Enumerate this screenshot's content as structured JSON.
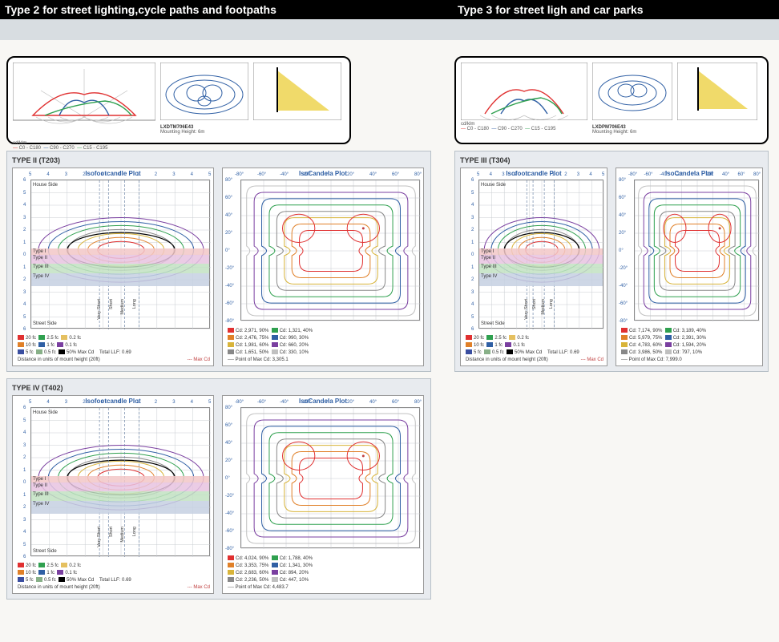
{
  "header": {
    "type2": "Type 2 for street lighting,cycle paths and footpaths",
    "type3": "Type 3 for street ligh and car parks"
  },
  "polar": {
    "legend_c0": "C0 - C180",
    "legend_c90": "C90 - C270",
    "legend_c15": "C15 - C195",
    "unit": "cd/klm",
    "model_t2": "LXDTM706E43",
    "model_t3": "LXDPM706E43",
    "mh": "Mounting Height: 6m"
  },
  "colors": {
    "red": "#e03030",
    "blue": "#2f5fa4",
    "green": "#2fa04f",
    "purple": "#7a3fa0",
    "orange": "#e08028",
    "black": "#000",
    "gold": "#d8b43a",
    "band_t1": "#f2c7c7",
    "band_t2": "#e7c3e0",
    "band_t3": "#c2e2c2",
    "band_t4": "#c6d0e2",
    "grid": "#c8ccd2",
    "dash": "#6f87a8"
  },
  "cards": {
    "t2": {
      "code": "TYPE II (T203)",
      "cd": [
        {
          "c": "#e03030",
          "t": "Cd: 2,971, 90%"
        },
        {
          "c": "#2fa04f",
          "t": "Cd: 1,321, 40%"
        },
        {
          "c": "#e08028",
          "t": "Cd: 2,476, 75%"
        },
        {
          "c": "#2f5fa4",
          "t": "Cd: 990, 30%"
        },
        {
          "c": "#d8b43a",
          "t": "Cd: 1,981, 60%"
        },
        {
          "c": "#7a3fa0",
          "t": "Cd: 660, 20%"
        },
        {
          "c": "#888888",
          "t": "Cd: 1,651, 50%"
        },
        {
          "c": "#c0c0c0",
          "t": "Cd: 330, 10%"
        }
      ],
      "max": "Point of Max Cd: 3,305.1"
    },
    "t3": {
      "code": "TYPE III (T304)",
      "cd": [
        {
          "c": "#e03030",
          "t": "Cd: 7,174, 90%"
        },
        {
          "c": "#2fa04f",
          "t": "Cd: 3,189, 40%"
        },
        {
          "c": "#e08028",
          "t": "Cd: 5,979, 75%"
        },
        {
          "c": "#2f5fa4",
          "t": "Cd: 2,391, 30%"
        },
        {
          "c": "#d8b43a",
          "t": "Cd: 4,783, 60%"
        },
        {
          "c": "#7a3fa0",
          "t": "Cd: 1,594, 20%"
        },
        {
          "c": "#888888",
          "t": "Cd: 3,986, 50%"
        },
        {
          "c": "#c0c0c0",
          "t": "Cd: 797, 10%"
        }
      ],
      "max": "Point of Max Cd: 7,999.0"
    },
    "t4": {
      "code": "TYPE IV (T402)",
      "cd": [
        {
          "c": "#e03030",
          "t": "Cd: 4,024, 90%"
        },
        {
          "c": "#2fa04f",
          "t": "Cd: 1,788, 40%"
        },
        {
          "c": "#e08028",
          "t": "Cd: 3,353, 75%"
        },
        {
          "c": "#2f5fa4",
          "t": "Cd: 1,341, 30%"
        },
        {
          "c": "#d8b43a",
          "t": "Cd: 2,683, 60%"
        },
        {
          "c": "#7a3fa0",
          "t": "Cd: 894, 20%"
        },
        {
          "c": "#888888",
          "t": "Cd: 2,236, 50%"
        },
        {
          "c": "#c0c0c0",
          "t": "Cd: 447, 10%"
        }
      ],
      "max": "Point of Max Cd: 4,483.7"
    }
  },
  "fc_legend": [
    {
      "c": "#e03030",
      "t": "20 fc"
    },
    {
      "c": "#2fa04f",
      "t": "2.5 fc"
    },
    {
      "c": "#e5c060",
      "t": "0.2 fc"
    },
    {
      "c": "#e08028",
      "t": "10 fc"
    },
    {
      "c": "#2f5fa4",
      "t": "1 fc"
    },
    {
      "c": "#7a3fa0",
      "t": "0.1 fc"
    },
    {
      "c": "#3a4ea0",
      "t": "5 fc"
    },
    {
      "c": "#88b088",
      "t": "0.5 fc"
    },
    {
      "c": "#000",
      "t": "50% Max Cd"
    }
  ],
  "fc_meta": {
    "llf": "Total LLF: 0.69",
    "units": "Distance in units of mount height (20ft)",
    "maxcd": "--- Max Cd"
  },
  "iso": {
    "house": "House Side",
    "street": "Street Side",
    "types": [
      "Type I",
      "Type II",
      "Type III",
      "Type IV"
    ],
    "throw": [
      "Very Short",
      "Short",
      "Medium",
      "Long"
    ],
    "xticks": [
      "5",
      "4",
      "3",
      "2",
      "1",
      "0",
      "1",
      "2",
      "3",
      "4",
      "5"
    ],
    "yticks": [
      "6",
      "5",
      "4",
      "3",
      "2",
      "1",
      "0",
      "1",
      "2",
      "3",
      "4",
      "5",
      "6"
    ],
    "cd_xticks": [
      "-80°",
      "-60°",
      "-40°",
      "-20°",
      "0°",
      "20°",
      "40°",
      "60°",
      "80°"
    ],
    "cd_yticks": [
      "80°",
      "60°",
      "40°",
      "20°",
      "0°",
      "-20°",
      "-40°",
      "-60°",
      "-80°"
    ],
    "title_fc": "Isofootcandle Plot",
    "title_cd": "IsoCandela Plot"
  }
}
